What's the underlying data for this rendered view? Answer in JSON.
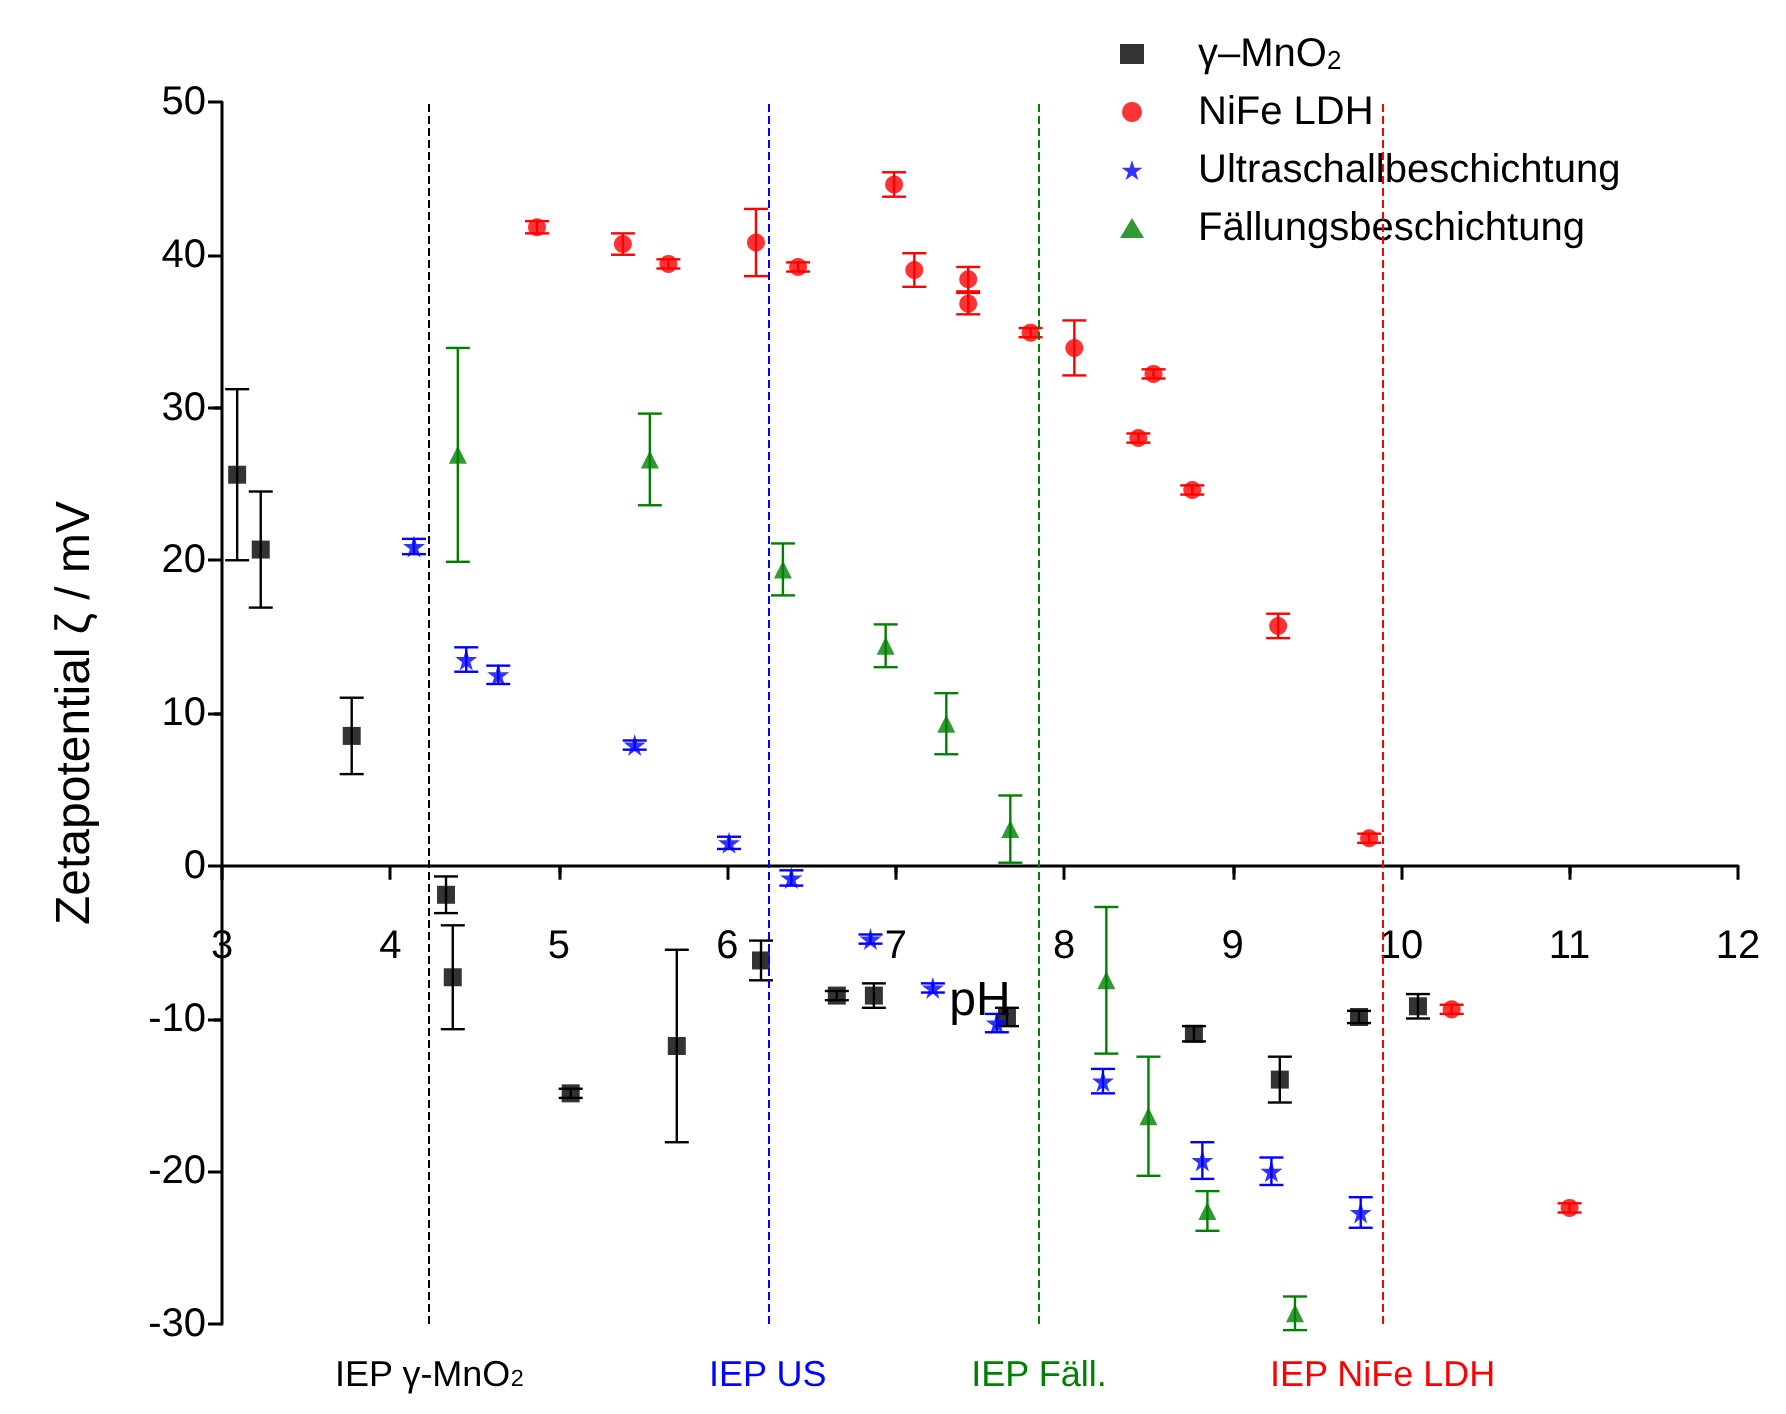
{
  "chart_data": {
    "type": "scatter",
    "xlabel": "pH",
    "ylabel": "Zetapotential ζ / mV",
    "xlim": [
      3,
      12
    ],
    "xticks": [
      3,
      4,
      5,
      6,
      7,
      8,
      9,
      10,
      11,
      12
    ],
    "ylim": [
      -30,
      50
    ],
    "yticks": [
      -30,
      -20,
      -10,
      0,
      10,
      20,
      30,
      40,
      50
    ],
    "legend": "top right",
    "series": [
      {
        "name": "γ–MnO$_{2}$",
        "color": "#000000",
        "marker": "square",
        "x": [
          3.09,
          3.23,
          3.77,
          4.33,
          4.37,
          5.07,
          5.7,
          6.2,
          6.65,
          6.87,
          7.66,
          8.77,
          9.28,
          9.75,
          10.1
        ],
        "values": [
          25.6,
          20.7,
          8.5,
          -1.9,
          -7.3,
          -14.9,
          -11.8,
          -6.2,
          -8.5,
          -8.5,
          -9.9,
          -11,
          -14,
          -9.9,
          -9.2
        ],
        "errors": [
          5.6,
          3.8,
          2.5,
          1.2,
          3.4,
          0.3,
          6.3,
          1.3,
          0.3,
          0.8,
          0.6,
          0.5,
          1.5,
          0.4,
          0.8
        ]
      },
      {
        "name": "NiFe LDH",
        "color": "#ff0000",
        "marker": "circle",
        "x": [
          4.87,
          5.38,
          5.65,
          6.17,
          6.42,
          6.99,
          7.11,
          7.43,
          7.43,
          7.8,
          8.06,
          8.53,
          8.44,
          8.76,
          9.27,
          9.81,
          10.3,
          11.0
        ],
        "values": [
          41.8,
          40.7,
          39.4,
          40.8,
          39.2,
          44.6,
          39,
          38.4,
          36.8,
          34.9,
          33.9,
          32.2,
          28,
          24.6,
          15.7,
          1.8,
          -9.4,
          -22.4
        ],
        "errors": [
          0.4,
          0.7,
          0.3,
          2.2,
          0.3,
          0.8,
          1.1,
          0.8,
          0.7,
          0.3,
          1.8,
          0.3,
          0.3,
          0.3,
          0.8,
          0.3,
          0.3,
          0.3
        ]
      },
      {
        "name": "Ultraschallbeschichtung",
        "color": "#0000ff",
        "marker": "star",
        "x": [
          4.14,
          4.45,
          4.64,
          5.45,
          6.01,
          6.38,
          6.85,
          7.22,
          7.6,
          8.23,
          8.82,
          9.23,
          9.76
        ],
        "values": [
          20.9,
          13.5,
          12.5,
          7.9,
          1.5,
          -0.8,
          -4.8,
          -8,
          -10.3,
          -14.1,
          -19.3,
          -20,
          -22.7
        ],
        "errors": [
          0.5,
          0.8,
          0.6,
          0.3,
          0.4,
          0.5,
          0.3,
          0.3,
          0.6,
          0.8,
          1.2,
          0.9,
          1
        ]
      },
      {
        "name": "Fällungsbeschichtung",
        "color": "#008000",
        "marker": "triangle",
        "x": [
          4.4,
          5.54,
          6.33,
          6.94,
          7.3,
          7.68,
          8.25,
          8.5,
          8.85,
          9.37
        ],
        "values": [
          26.9,
          26.6,
          19.4,
          14.4,
          9.3,
          2.4,
          -7.5,
          -16.4,
          -22.6,
          -29.3
        ],
        "errors": [
          7,
          3,
          1.7,
          1.4,
          2,
          2.2,
          4.8,
          3.9,
          1.3,
          1.1
        ]
      }
    ],
    "ref_lines": [
      {
        "axis": "x",
        "value": 4.23,
        "label": "IEP γ-MnO$_{2}$",
        "color": "#000000",
        "line_style": "dashed"
      },
      {
        "axis": "x",
        "value": 6.24,
        "label": "IEP US",
        "color": "#0000ff",
        "line_style": "dashed"
      },
      {
        "axis": "x",
        "value": 7.85,
        "label": "IEP Fäll.",
        "color": "#008000",
        "line_style": "dashed"
      },
      {
        "axis": "x",
        "value": 9.89,
        "label": "IEP NiFe LDH",
        "color": "#ff0000",
        "line_style": "dashed"
      }
    ]
  }
}
